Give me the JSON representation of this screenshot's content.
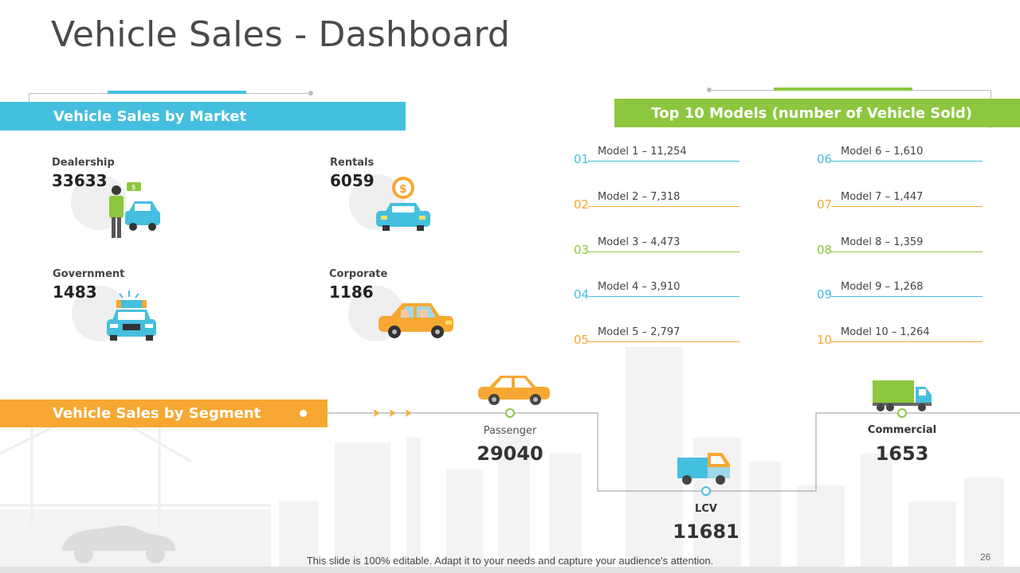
{
  "title": "Vehicle Sales - Dashboard",
  "market": {
    "heading": "Vehicle Sales by Market",
    "items": [
      {
        "label": "Dealership",
        "value": "33633",
        "icon": "dealership-icon"
      },
      {
        "label": "Rentals",
        "value": "6059",
        "icon": "rental-car-icon"
      },
      {
        "label": "Government",
        "value": "1483",
        "icon": "police-car-icon"
      },
      {
        "label": "Corporate",
        "value": "1186",
        "icon": "corporate-car-icon"
      }
    ]
  },
  "models": {
    "heading": "Top 10 Models (number of Vehicle Sold)",
    "items": [
      {
        "num": "01",
        "text": "Model 1 – 11,254"
      },
      {
        "num": "02",
        "text": "Model 2 – 7,318"
      },
      {
        "num": "03",
        "text": "Model 3 – 4,473"
      },
      {
        "num": "04",
        "text": "Model 4 – 3,910"
      },
      {
        "num": "05",
        "text": "Model 5 – 2,797"
      },
      {
        "num": "06",
        "text": "Model 6 – 1,610"
      },
      {
        "num": "07",
        "text": "Model 7 – 1,447"
      },
      {
        "num": "08",
        "text": "Model 8 – 1,359"
      },
      {
        "num": "09",
        "text": "Model 9 – 1,268"
      },
      {
        "num": "10",
        "text": "Model 10 – 1,264"
      }
    ],
    "colors": [
      "#45bfdf",
      "#f6a832",
      "#8dc63f",
      "#45bfdf",
      "#f6a832"
    ]
  },
  "segment": {
    "heading": "Vehicle Sales by Segment",
    "items": [
      {
        "label": "Passenger",
        "value": "29040",
        "icon": "passenger-car-icon"
      },
      {
        "label": "LCV",
        "value": "11681",
        "icon": "lcv-truck-icon"
      },
      {
        "label": "Commercial",
        "value": "1653",
        "icon": "commercial-truck-icon"
      }
    ]
  },
  "footnote": "This slide is 100% editable. Adapt it to your needs and capture your audience's attention.",
  "page_number": "26",
  "colors": {
    "blue": "#45bfdf",
    "green": "#8dc63f",
    "orange": "#f6a832"
  }
}
